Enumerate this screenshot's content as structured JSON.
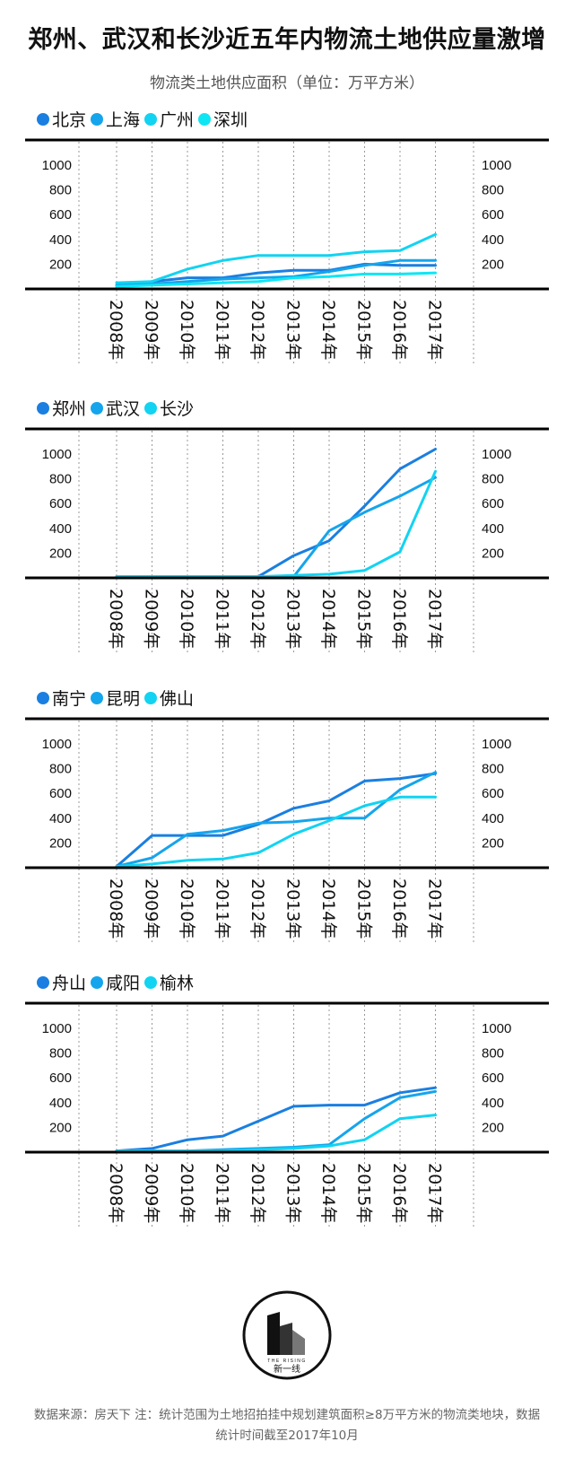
{
  "title": "郑州、武汉和长沙近五年内物流土地供应量激增",
  "subtitle": "物流类土地供应面积（单位：万平方米）",
  "footer": {
    "line1": "数据来源：房天下  注：统计范围为土地招拍挂中规划建筑面积≥8万平方米的物流类地块，数据",
    "line2": "统计时间截至2017年10月"
  },
  "logo": {
    "brand": "THE RISING",
    "name": "新一线"
  },
  "colors": {
    "s1": "#1a7fe0",
    "s2": "#15a5ec",
    "s3": "#12d3f2",
    "s4": "#0fe6f4",
    "grid": "#999999",
    "axis": "#000000"
  },
  "chart_data": [
    {
      "type": "line",
      "title": "北京 上海 广州 深圳",
      "x": [
        "2008年",
        "2009年",
        "2010年",
        "2011年",
        "2012年",
        "2013年",
        "2014年",
        "2015年",
        "2016年",
        "2017年"
      ],
      "ylim": [
        0,
        1000
      ],
      "yticks": [
        200,
        400,
        600,
        800,
        1000
      ],
      "series": [
        {
          "name": "北京",
          "values": [
            20,
            60,
            90,
            90,
            130,
            150,
            150,
            200,
            190,
            190
          ]
        },
        {
          "name": "上海",
          "values": [
            30,
            40,
            60,
            80,
            90,
            100,
            140,
            190,
            230,
            230
          ]
        },
        {
          "name": "广州",
          "values": [
            50,
            60,
            160,
            230,
            270,
            270,
            270,
            300,
            310,
            440
          ]
        },
        {
          "name": "深圳",
          "values": [
            20,
            30,
            40,
            50,
            60,
            90,
            100,
            120,
            120,
            130
          ]
        }
      ]
    },
    {
      "type": "line",
      "title": "郑州 武汉 长沙",
      "x": [
        "2008年",
        "2009年",
        "2010年",
        "2011年",
        "2012年",
        "2013年",
        "2014年",
        "2015年",
        "2016年",
        "2017年"
      ],
      "ylim": [
        0,
        1000
      ],
      "yticks": [
        200,
        400,
        600,
        800,
        1000
      ],
      "series": [
        {
          "name": "郑州",
          "values": [
            10,
            10,
            10,
            10,
            10,
            180,
            300,
            580,
            880,
            1040
          ]
        },
        {
          "name": "武汉",
          "values": [
            10,
            10,
            10,
            10,
            10,
            10,
            380,
            530,
            660,
            810
          ]
        },
        {
          "name": "长沙",
          "values": [
            10,
            10,
            10,
            10,
            10,
            20,
            30,
            60,
            210,
            860
          ]
        }
      ]
    },
    {
      "type": "line",
      "title": "南宁 昆明 佛山",
      "x": [
        "2008年",
        "2009年",
        "2010年",
        "2011年",
        "2012年",
        "2013年",
        "2014年",
        "2015年",
        "2016年",
        "2017年"
      ],
      "ylim": [
        0,
        1000
      ],
      "yticks": [
        200,
        400,
        600,
        800,
        1000
      ],
      "series": [
        {
          "name": "南宁",
          "values": [
            10,
            260,
            260,
            260,
            350,
            480,
            540,
            700,
            720,
            760
          ]
        },
        {
          "name": "昆明",
          "values": [
            10,
            80,
            270,
            300,
            360,
            370,
            400,
            400,
            630,
            770
          ]
        },
        {
          "name": "佛山",
          "values": [
            10,
            30,
            60,
            70,
            120,
            270,
            380,
            500,
            570,
            570
          ]
        }
      ]
    },
    {
      "type": "line",
      "title": "舟山 咸阳 榆林",
      "x": [
        "2008年",
        "2009年",
        "2010年",
        "2011年",
        "2012年",
        "2013年",
        "2014年",
        "2015年",
        "2016年",
        "2017年"
      ],
      "ylim": [
        0,
        1000
      ],
      "yticks": [
        200,
        400,
        600,
        800,
        1000
      ],
      "series": [
        {
          "name": "舟山",
          "values": [
            10,
            30,
            100,
            130,
            250,
            370,
            380,
            380,
            480,
            520
          ]
        },
        {
          "name": "咸阳",
          "values": [
            10,
            10,
            10,
            20,
            30,
            40,
            60,
            270,
            440,
            490
          ]
        },
        {
          "name": "榆林",
          "values": [
            10,
            10,
            10,
            10,
            20,
            30,
            50,
            100,
            270,
            300
          ]
        }
      ]
    }
  ]
}
